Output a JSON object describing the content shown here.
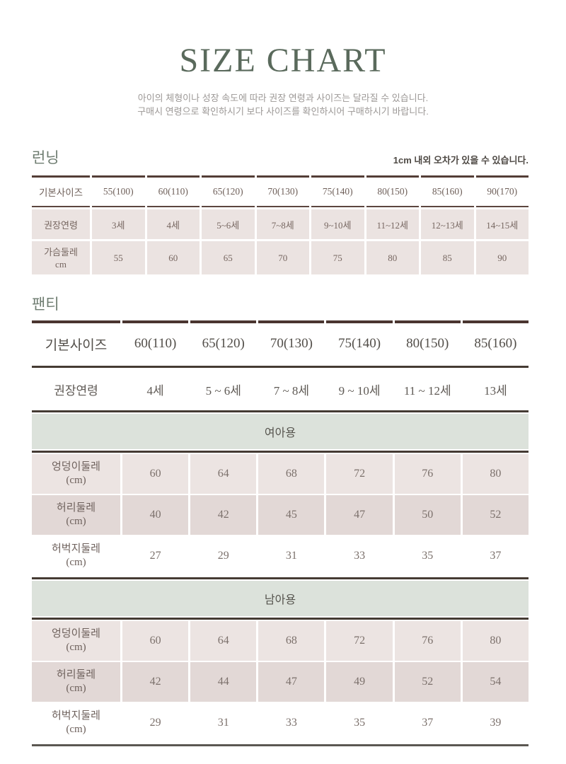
{
  "page": {
    "title": "SIZE CHART",
    "subtitle_line1": "아이의 체형이나 성장 속도에 따라 권장 연령과 사이즈는 달라질 수 있습니다.",
    "subtitle_line2": "구매시 연령으로 확인하시기 보다 사이즈를 확인하시어 구매하시기 바랍니다."
  },
  "colors": {
    "title_green": "#5a6a5c",
    "section_green": "#6e7c70",
    "border_brown": "#4a3530",
    "line_dark": "#453b33",
    "row_pink_light": "#ece4e2",
    "row_pink_dark": "#e2d8d6",
    "band_green": "#dce2db"
  },
  "running": {
    "section_title": "런닝",
    "tolerance_note": "1cm 내외 오차가 있을 수 있습니다.",
    "header": [
      "기본사이즈",
      "55(100)",
      "60(110)",
      "65(120)",
      "70(130)",
      "75(140)",
      "80(150)",
      "85(160)",
      "90(170)"
    ],
    "age_row": {
      "label": "권장연령",
      "values": [
        "3세",
        "4세",
        "5~6세",
        "7~8세",
        "9~10세",
        "11~12세",
        "12~13세",
        "14~15세"
      ]
    },
    "chest_row": {
      "label": "가슴둘레",
      "unit": "cm",
      "values": [
        "55",
        "60",
        "65",
        "70",
        "75",
        "80",
        "85",
        "90"
      ]
    }
  },
  "panty": {
    "section_title": "팬티",
    "header": [
      "기본사이즈",
      "60(110)",
      "65(120)",
      "70(130)",
      "75(140)",
      "80(150)",
      "85(160)"
    ],
    "age_row": {
      "label": "권장연령",
      "values": [
        "4세",
        "5 ~ 6세",
        "7 ~ 8세",
        "9 ~ 10세",
        "11 ~ 12세",
        "13세"
      ]
    },
    "girls": {
      "band_label": "여아용",
      "hip_row": {
        "label": "엉덩이둘레",
        "unit": "(cm)",
        "values": [
          "60",
          "64",
          "68",
          "72",
          "76",
          "80"
        ]
      },
      "waist_row": {
        "label": "허리둘레",
        "unit": "(cm)",
        "values": [
          "40",
          "42",
          "45",
          "47",
          "50",
          "52"
        ]
      },
      "thigh_row": {
        "label": "허벅지둘레",
        "unit": "(cm)",
        "values": [
          "27",
          "29",
          "31",
          "33",
          "35",
          "37"
        ]
      }
    },
    "boys": {
      "band_label": "남아용",
      "hip_row": {
        "label": "엉덩이둘레",
        "unit": "(cm)",
        "values": [
          "60",
          "64",
          "68",
          "72",
          "76",
          "80"
        ]
      },
      "waist_row": {
        "label": "허리둘레",
        "unit": "(cm)",
        "values": [
          "42",
          "44",
          "47",
          "49",
          "52",
          "54"
        ]
      },
      "thigh_row": {
        "label": "허벅지둘레",
        "unit": "(cm)",
        "values": [
          "29",
          "31",
          "33",
          "35",
          "37",
          "39"
        ]
      }
    }
  }
}
